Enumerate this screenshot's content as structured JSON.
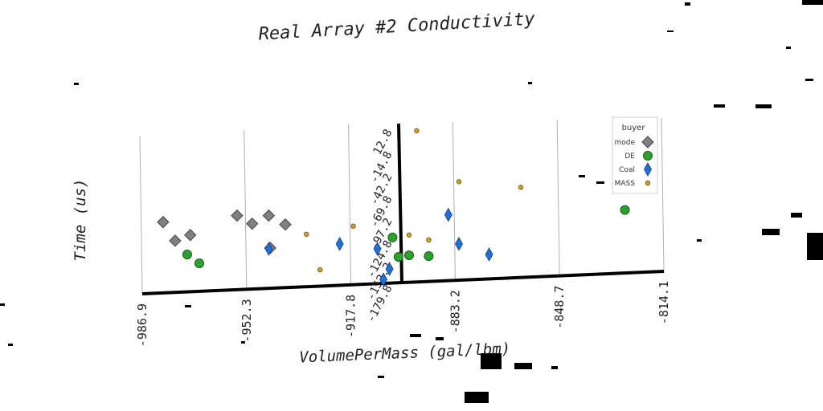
{
  "chart_data": {
    "type": "scatter",
    "title": "Real Array #2 Conductivity",
    "xlabel": "VolumePerMass (gal/lbm)",
    "ylabel": "Time (us)",
    "x_ticks": [
      "-986.9",
      "-952.3",
      "-917.8",
      "-883.2",
      "-848.7",
      "-814.1"
    ],
    "y_ticks": [
      "12.8",
      "-14.8",
      "-42.2",
      "-69.8",
      "-97.2",
      "-124.8",
      "-152.2",
      "-179.8"
    ],
    "xlim": [
      -986.9,
      -814.1
    ],
    "ylim": [
      -179.8,
      12.8
    ],
    "grid": true,
    "legend": {
      "title": "buyer",
      "placement": "top-right",
      "entries": [
        "mode",
        "DE",
        "Coal",
        "MASS"
      ]
    },
    "series": [
      {
        "name": "mode",
        "marker": "diamond",
        "color": "#808080",
        "points": [
          {
            "x": -980.0,
            "y": -105.0
          },
          {
            "x": -976.0,
            "y": -128.0
          },
          {
            "x": -971.0,
            "y": -121.0
          },
          {
            "x": -955.5,
            "y": -97.0
          },
          {
            "x": -950.5,
            "y": -107.0
          },
          {
            "x": -945.0,
            "y": -97.0
          },
          {
            "x": -939.5,
            "y": -108.0
          },
          {
            "x": -944.5,
            "y": -137.0
          }
        ]
      },
      {
        "name": "DE",
        "marker": "circle",
        "color": "#2ca02c",
        "points": [
          {
            "x": -972.0,
            "y": -145.0
          },
          {
            "x": -968.0,
            "y": -156.0
          },
          {
            "x": -904.0,
            "y": -124.0
          },
          {
            "x": -902.0,
            "y": -148.0
          },
          {
            "x": -898.5,
            "y": -146.0
          },
          {
            "x": -892.0,
            "y": -147.0
          },
          {
            "x": -827.0,
            "y": -90.0
          }
        ]
      },
      {
        "name": "Coal",
        "marker": "thin-diamond",
        "color": "#1f6fd8",
        "points": [
          {
            "x": -945.0,
            "y": -138.0
          },
          {
            "x": -921.5,
            "y": -132.0
          },
          {
            "x": -909.0,
            "y": -138.0
          },
          {
            "x": -907.0,
            "y": -176.0
          },
          {
            "x": -905.0,
            "y": -163.0
          },
          {
            "x": -885.5,
            "y": -96.0
          },
          {
            "x": -882.0,
            "y": -132.0
          },
          {
            "x": -872.0,
            "y": -145.0
          }
        ]
      },
      {
        "name": "MASS",
        "marker": "small-circle",
        "color": "#c8a42a",
        "points": [
          {
            "x": -932.5,
            "y": -120.0
          },
          {
            "x": -928.0,
            "y": -164.0
          },
          {
            "x": -917.0,
            "y": -110.0
          },
          {
            "x": -892.0,
            "y": -127.0
          },
          {
            "x": -882.0,
            "y": -55.0
          },
          {
            "x": -898.5,
            "y": -121.0
          },
          {
            "x": -861.5,
            "y": -62.0
          },
          {
            "x": -896.0,
            "y": 8.0
          }
        ]
      }
    ]
  }
}
